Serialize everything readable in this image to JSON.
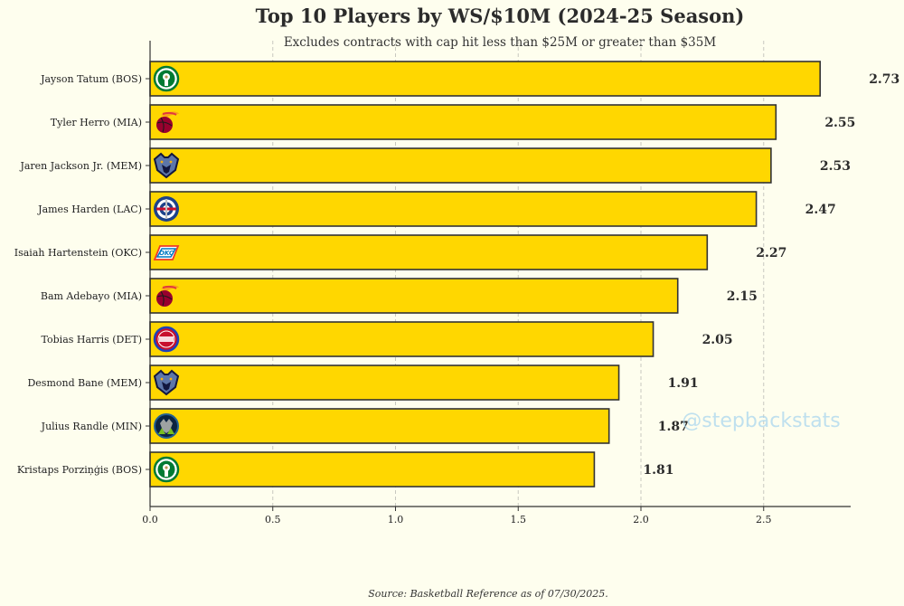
{
  "chart_data": {
    "type": "bar",
    "orientation": "horizontal",
    "title": "Top 10 Players by WS/$10M (2024-25 Season)",
    "subtitle": "Excludes contracts with cap hit less than $25M or greater than $35M",
    "xlabel": "",
    "ylabel": "",
    "xlim": [
      0,
      2.86
    ],
    "xticks": [
      "0.0",
      "0.5",
      "1.0",
      "1.5",
      "2.0",
      "2.5"
    ],
    "grid": "vertical-dashed",
    "categories": [
      "Jayson Tatum (BOS)",
      "Tyler Herro (MIA)",
      "Jaren Jackson Jr. (MEM)",
      "James Harden (LAC)",
      "Isaiah Hartenstein (OKC)",
      "Bam Adebayo (MIA)",
      "Tobias Harris (DET)",
      "Desmond Bane (MEM)",
      "Julius Randle (MIN)",
      "Kristaps Porziņģis (BOS)"
    ],
    "values": [
      2.73,
      2.55,
      2.53,
      2.47,
      2.27,
      2.15,
      2.05,
      1.91,
      1.87,
      1.81
    ],
    "value_labels": [
      "2.73",
      "2.55",
      "2.53",
      "2.47",
      "2.27",
      "2.15",
      "2.05",
      "1.91",
      "1.87",
      "1.81"
    ],
    "team_logos": [
      "celtics-logo-icon",
      "heat-logo-icon",
      "grizzlies-logo-icon",
      "clippers-logo-icon",
      "thunder-logo-icon",
      "heat-logo-icon",
      "pistons-logo-icon",
      "grizzlies-logo-icon",
      "timberwolves-logo-icon",
      "celtics-logo-icon"
    ],
    "colors": {
      "background": "#fefeee",
      "bar_fill": "#ffd700",
      "bar_edge": "#333333"
    }
  },
  "watermark": "@stepbackstats",
  "source": "Source: Basketball Reference as of 07/30/2025."
}
